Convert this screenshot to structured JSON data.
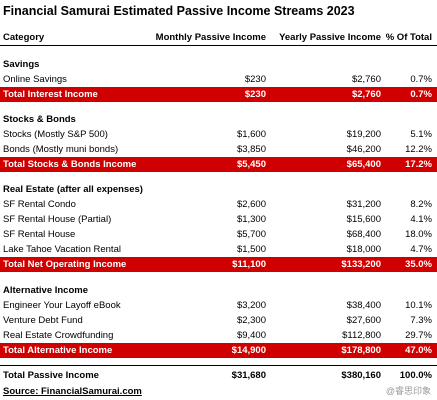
{
  "title": "Financial Samurai Estimated Passive Income Streams 2023",
  "columns": [
    "Category",
    "Monthly Passive Income",
    "Yearly Passive Income",
    "% Of Total"
  ],
  "sections": [
    {
      "name": "Savings",
      "rows": [
        {
          "label": "Online Savings",
          "monthly": "$230",
          "yearly": "$2,760",
          "pct": "0.7%"
        }
      ],
      "total": {
        "label": "Total Interest Income",
        "monthly": "$230",
        "yearly": "$2,760",
        "pct": "0.7%"
      }
    },
    {
      "name": "Stocks & Bonds",
      "rows": [
        {
          "label": "Stocks (Mostly S&P 500)",
          "monthly": "$1,600",
          "yearly": "$19,200",
          "pct": "5.1%"
        },
        {
          "label": "Bonds (Mostly muni bonds)",
          "monthly": "$3,850",
          "yearly": "$46,200",
          "pct": "12.2%"
        }
      ],
      "total": {
        "label": "Total Stocks & Bonds Income",
        "monthly": "$5,450",
        "yearly": "$65,400",
        "pct": "17.2%"
      }
    },
    {
      "name": "Real Estate (after all expenses)",
      "rows": [
        {
          "label": "SF Rental Condo",
          "monthly": "$2,600",
          "yearly": "$31,200",
          "pct": "8.2%"
        },
        {
          "label": "SF Rental House (Partial)",
          "monthly": "$1,300",
          "yearly": "$15,600",
          "pct": "4.1%"
        },
        {
          "label": "SF Rental House",
          "monthly": "$5,700",
          "yearly": "$68,400",
          "pct": "18.0%"
        },
        {
          "label": "Lake Tahoe Vacation Rental",
          "monthly": "$1,500",
          "yearly": "$18,000",
          "pct": "4.7%"
        }
      ],
      "total": {
        "label": "Total Net Operating Income",
        "monthly": "$11,100",
        "yearly": "$133,200",
        "pct": "35.0%"
      }
    },
    {
      "name": "Alternative Income",
      "rows": [
        {
          "label": "Engineer Your Layoff eBook",
          "monthly": "$3,200",
          "yearly": "$38,400",
          "pct": "10.1%"
        },
        {
          "label": "Venture Debt Fund",
          "monthly": "$2,300",
          "yearly": "$27,600",
          "pct": "7.3%"
        },
        {
          "label": "Real Estate Crowdfunding",
          "monthly": "$9,400",
          "yearly": "$112,800",
          "pct": "29.7%"
        }
      ],
      "total": {
        "label": "Total Alternative Income",
        "monthly": "$14,900",
        "yearly": "$178,800",
        "pct": "47.0%"
      }
    }
  ],
  "grand_total": {
    "label": "Total Passive Income",
    "monthly": "$31,680",
    "yearly": "$380,160",
    "pct": "100.0%"
  },
  "source": "Source: FinancialSamurai.com",
  "watermark": "@睿思印象",
  "colors": {
    "total_row_bg": "#d10000",
    "total_row_text": "#ffffff"
  }
}
